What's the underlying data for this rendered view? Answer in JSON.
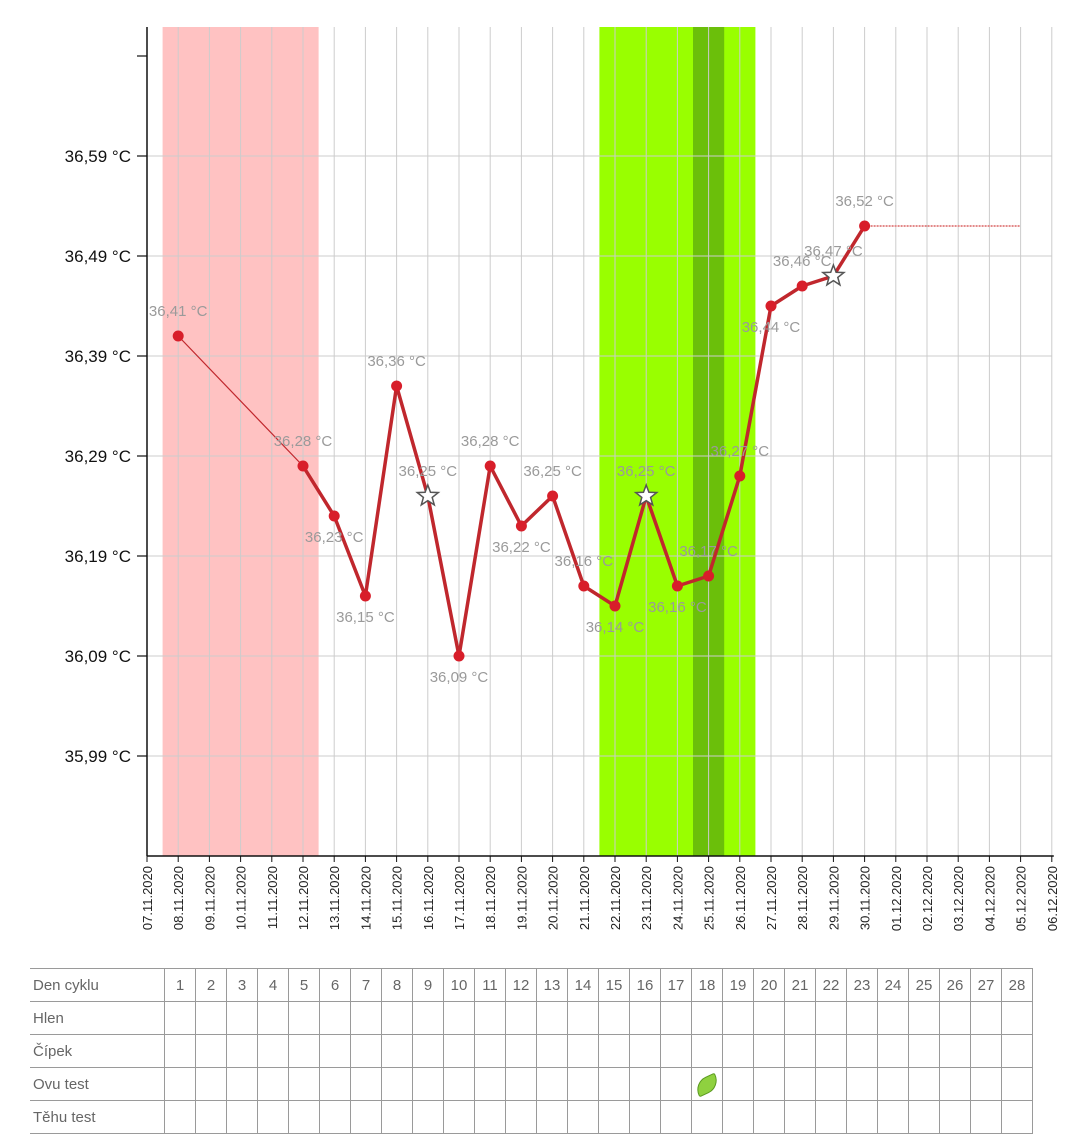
{
  "chart_data": {
    "type": "line",
    "y_axis": {
      "ticks": [
        35.99,
        36.09,
        36.19,
        36.29,
        36.39,
        36.49,
        36.59
      ],
      "tick_labels": [
        "35,99 °C",
        "36,09 °C",
        "36,19 °C",
        "36,29 °C",
        "36,39 °C",
        "36,49 °C",
        "36,59 °C"
      ],
      "ylim": [
        35.89,
        36.72
      ]
    },
    "x_axis": {
      "dates": [
        "07.11.2020",
        "08.11.2020",
        "09.11.2020",
        "10.11.2020",
        "11.11.2020",
        "12.11.2020",
        "13.11.2020",
        "14.11.2020",
        "15.11.2020",
        "16.11.2020",
        "17.11.2020",
        "18.11.2020",
        "19.11.2020",
        "20.11.2020",
        "21.11.2020",
        "22.11.2020",
        "23.11.2020",
        "24.11.2020",
        "25.11.2020",
        "26.11.2020",
        "27.11.2020",
        "28.11.2020",
        "29.11.2020",
        "30.11.2020",
        "01.12.2020",
        "02.12.2020",
        "03.12.2020",
        "04.12.2020",
        "05.12.2020",
        "06.12.2020"
      ]
    },
    "grid": true,
    "series": [
      {
        "points": [
          {
            "date": "08.11.2020",
            "value": 36.41,
            "label": "36,41 °C"
          },
          {
            "date": "12.11.2020",
            "value": 36.28,
            "label": "36,28 °C"
          },
          {
            "date": "13.11.2020",
            "value": 36.23,
            "label": "36,23 °C"
          },
          {
            "date": "14.11.2020",
            "value": 36.15,
            "label": "36,15 °C"
          },
          {
            "date": "15.11.2020",
            "value": 36.36,
            "label": "36,36 °C"
          },
          {
            "date": "16.11.2020",
            "value": 36.25,
            "label": "36,25 °C",
            "marker": "star"
          },
          {
            "date": "17.11.2020",
            "value": 36.09,
            "label": "36,09 °C"
          },
          {
            "date": "18.11.2020",
            "value": 36.28,
            "label": "36,28 °C"
          },
          {
            "date": "19.11.2020",
            "value": 36.22,
            "label": "36,22 °C"
          },
          {
            "date": "20.11.2020",
            "value": 36.25,
            "label": "36,25 °C"
          },
          {
            "date": "21.11.2020",
            "value": 36.16,
            "label": "36,16 °C"
          },
          {
            "date": "22.11.2020",
            "value": 36.14,
            "label": "36,14 °C"
          },
          {
            "date": "23.11.2020",
            "value": 36.25,
            "label": "36,25 °C",
            "marker": "star"
          },
          {
            "date": "24.11.2020",
            "value": 36.16,
            "label": "36,16 °C"
          },
          {
            "date": "25.11.2020",
            "value": 36.17,
            "label": "36,17 °C"
          },
          {
            "date": "26.11.2020",
            "value": 36.27,
            "label": "36,27 °C"
          },
          {
            "date": "27.11.2020",
            "value": 36.44,
            "label": "36,44 °C"
          },
          {
            "date": "28.11.2020",
            "value": 36.46,
            "label": "36,46 °C"
          },
          {
            "date": "29.11.2020",
            "value": 36.47,
            "label": "36,47 °C",
            "marker": "star"
          },
          {
            "date": "30.11.2020",
            "value": 36.52,
            "label": "36,52 °C"
          }
        ],
        "projection": {
          "value": 36.52,
          "from": "30.11.2020",
          "to": "05.12.2020"
        }
      }
    ],
    "bands": [
      {
        "from": "07.11.2020",
        "to": "12.11.2020",
        "kind": "period",
        "color": "#ffc2c2"
      },
      {
        "from": "21.11.2020",
        "to": "26.11.2020",
        "kind": "fertile",
        "color": "#99ff00"
      },
      {
        "from": "24.11.2020",
        "to": "25.11.2020",
        "kind": "ovulation",
        "color": "#6bbf0a"
      }
    ],
    "line_color": "#c0272d",
    "point_color": "#d81e2a"
  },
  "table": {
    "rows": [
      {
        "label": "Den cyklu",
        "cells": [
          "1",
          "2",
          "3",
          "4",
          "5",
          "6",
          "7",
          "8",
          "9",
          "10",
          "11",
          "12",
          "13",
          "14",
          "15",
          "16",
          "17",
          "18",
          "19",
          "20",
          "21",
          "22",
          "23",
          "24",
          "25",
          "26",
          "27",
          "28"
        ]
      },
      {
        "label": "Hlen",
        "cells": []
      },
      {
        "label": "Čípek",
        "cells": []
      },
      {
        "label": "Ovu test",
        "cells": [],
        "icon_day": 18,
        "icon": "leaf-icon"
      },
      {
        "label": "Těhu test",
        "cells": []
      }
    ]
  }
}
